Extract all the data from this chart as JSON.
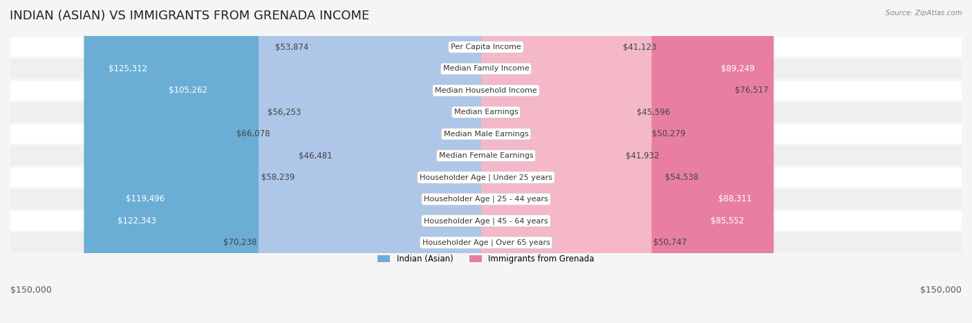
{
  "title": "INDIAN (ASIAN) VS IMMIGRANTS FROM GRENADA INCOME",
  "source": "Source: ZipAtlas.com",
  "categories": [
    "Per Capita Income",
    "Median Family Income",
    "Median Household Income",
    "Median Earnings",
    "Median Male Earnings",
    "Median Female Earnings",
    "Householder Age | Under 25 years",
    "Householder Age | 25 - 44 years",
    "Householder Age | 45 - 64 years",
    "Householder Age | Over 65 years"
  ],
  "indian_values": [
    53874,
    125312,
    105262,
    56253,
    66078,
    46481,
    58239,
    119496,
    122343,
    70238
  ],
  "grenada_values": [
    41123,
    89249,
    76517,
    45596,
    50279,
    41932,
    54538,
    88311,
    85552,
    50747
  ],
  "indian_labels": [
    "$53,874",
    "$125,312",
    "$105,262",
    "$56,253",
    "$66,078",
    "$46,481",
    "$58,239",
    "$119,496",
    "$122,343",
    "$70,238"
  ],
  "grenada_labels": [
    "$41,123",
    "$89,249",
    "$76,517",
    "$45,596",
    "$50,279",
    "$41,932",
    "$54,538",
    "$88,311",
    "$85,552",
    "$50,747"
  ],
  "max_value": 150000,
  "indian_color_light": "#aec6e8",
  "indian_color_strong": "#6aaed6",
  "grenada_color_light": "#f4b8c8",
  "grenada_color_strong": "#e87fa0",
  "indian_threshold": 100000,
  "grenada_threshold": 80000,
  "background_color": "#f5f5f5",
  "row_bg_color": "#ffffff",
  "row_alt_bg": "#efefef",
  "xlabel_left": "$150,000",
  "xlabel_right": "$150,000",
  "legend_indian": "Indian (Asian)",
  "legend_grenada": "Immigrants from Grenada",
  "title_fontsize": 13,
  "label_fontsize": 8.5,
  "category_fontsize": 8,
  "axis_fontsize": 9
}
